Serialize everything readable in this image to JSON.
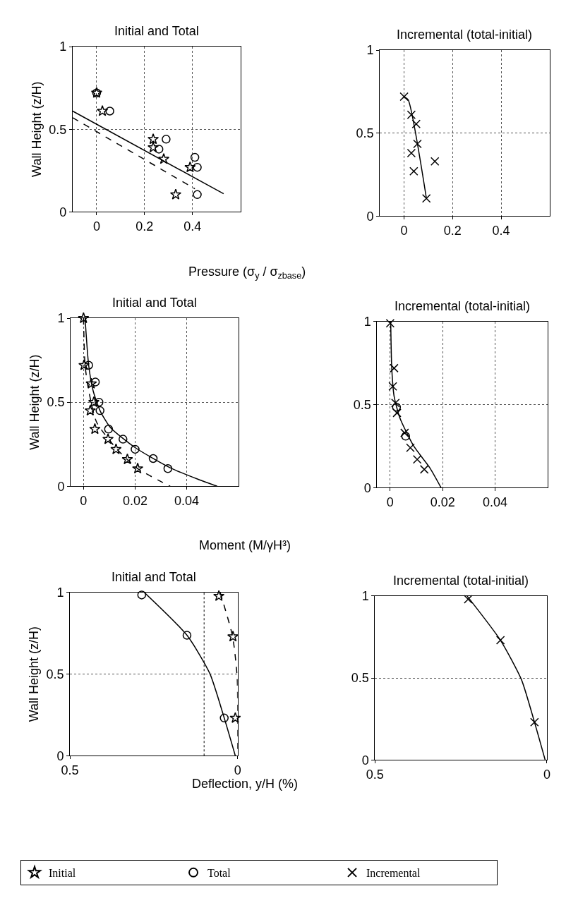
{
  "chart_data": [
    {
      "type": "scatter",
      "title": "Initial and Total",
      "xlabel": "Pressure (σ$_{y}$ / σ$_{z}$$_{base}$)",
      "ylabel": "Wall Height (z/H)",
      "xlim": [
        -0.1,
        0.6
      ],
      "xticks": [
        0,
        0.2,
        0.4
      ],
      "ylim": [
        0,
        1
      ],
      "yticks": [
        0,
        0.5,
        1
      ],
      "grid": true,
      "legend": "bottom",
      "series": [
        {
          "name": "Initial",
          "color": "#000000",
          "marker": "star",
          "x": [
            0.0,
            0.024,
            0.236,
            0.236,
            0.28,
            0.39,
            0.33
          ],
          "values": [
            0.72,
            0.61,
            0.44,
            0.39,
            0.32,
            0.27,
            0.105
          ]
        },
        {
          "name": "Total",
          "color": "#000000",
          "marker": "circle",
          "x": [
            0.0,
            0.055,
            0.29,
            0.26,
            0.41,
            0.42,
            0.42
          ],
          "values": [
            0.72,
            0.61,
            0.44,
            0.38,
            0.33,
            0.27,
            0.105
          ]
        },
        {
          "type": "line",
          "color": "#000000",
          "line_style": "solid",
          "x": [
            -0.1,
            0.53
          ],
          "values": [
            0.61,
            0.11
          ]
        },
        {
          "type": "line",
          "color": "#000000",
          "line_style": "dashed",
          "x": [
            -0.1,
            0.41
          ],
          "values": [
            0.57,
            0.14
          ]
        }
      ]
    },
    {
      "type": "scatter",
      "title": "Incremental (total-initial)",
      "xlim": [
        -0.1,
        0.6
      ],
      "xticks": [
        0,
        0.2,
        0.4
      ],
      "ylim": [
        0,
        1
      ],
      "yticks": [
        0,
        0.5,
        1
      ],
      "grid": true,
      "legend": "bottom",
      "series": [
        {
          "name": "Incremental",
          "color": "#000000",
          "marker": "cross",
          "x": [
            0.0,
            0.03,
            0.05,
            0.055,
            0.03,
            0.04,
            0.127,
            0.092
          ],
          "values": [
            0.72,
            0.61,
            0.555,
            0.435,
            0.38,
            0.27,
            0.33,
            0.107
          ]
        },
        {
          "type": "line",
          "color": "#000000",
          "line_style": "solid",
          "x": [
            0.0,
            0.017,
            0.092
          ],
          "values": [
            0.72,
            0.7,
            0.107
          ]
        }
      ]
    },
    {
      "type": "scatter",
      "title": "Initial and Total",
      "xlabel": "Moment (M/γH³)",
      "ylabel": "Wall Height (z/H)",
      "xlim": [
        -0.005,
        0.06
      ],
      "xticks": [
        0,
        0.02,
        0.04
      ],
      "ylim": [
        0,
        1
      ],
      "yticks": [
        0,
        0.5,
        1
      ],
      "grid": true,
      "legend": "bottom",
      "series": [
        {
          "name": "Initial",
          "color": "#000000",
          "marker": "star",
          "x": [
            0.0,
            0.0002,
            0.003,
            0.004,
            0.0026,
            0.0044,
            0.0095,
            0.0126,
            0.017,
            0.021
          ],
          "values": [
            1.0,
            0.72,
            0.61,
            0.5,
            0.45,
            0.34,
            0.28,
            0.22,
            0.16,
            0.105
          ]
        },
        {
          "name": "Total",
          "color": "#000000",
          "marker": "circle",
          "x": [
            0.002,
            0.0046,
            0.006,
            0.0064,
            0.0097,
            0.0153,
            0.02,
            0.027,
            0.0327
          ],
          "values": [
            0.72,
            0.62,
            0.5,
            0.45,
            0.34,
            0.28,
            0.22,
            0.165,
            0.105
          ]
        },
        {
          "type": "line",
          "color": "#000000",
          "line_style": "solid",
          "x": [
            0.0006,
            0.002,
            0.0037,
            0.0064,
            0.0104,
            0.02,
            0.0336,
            0.0443,
            0.0518
          ],
          "values": [
            1.0,
            0.72,
            0.57,
            0.45,
            0.35,
            0.23,
            0.11,
            0.042,
            0
          ]
        },
        {
          "type": "line",
          "color": "#000000",
          "line_style": "dashed",
          "x": [
            0,
            0.0006,
            0.002,
            0.0051,
            0.013,
            0.021,
            0.0336
          ],
          "values": [
            1.0,
            0.72,
            0.57,
            0.38,
            0.22,
            0.105,
            0
          ]
        }
      ]
    },
    {
      "type": "scatter",
      "title": "Incremental (total-initial)",
      "xlim": [
        -0.005,
        0.06
      ],
      "xticks": [
        0,
        0.02,
        0.04
      ],
      "ylim": [
        0,
        1
      ],
      "yticks": [
        0,
        0.5,
        1
      ],
      "grid": true,
      "legend": "bottom",
      "series": [
        {
          "name": "Incremental",
          "color": "#000000",
          "marker": "cross",
          "x": [
            0.0,
            0.0015,
            0.001,
            0.002,
            0.0026,
            0.0055,
            0.0077,
            0.0103,
            0.013
          ],
          "values": [
            0.99,
            0.72,
            0.61,
            0.51,
            0.45,
            0.33,
            0.24,
            0.17,
            0.11
          ]
        },
        {
          "name": "Total",
          "color": "#000000",
          "marker": "circle",
          "x": [
            0.0024,
            0.0059
          ],
          "values": [
            0.485,
            0.31
          ]
        },
        {
          "type": "line",
          "color": "#000000",
          "line_style": "solid",
          "x": [
            0.0002,
            0.0006,
            0.0015,
            0.0037,
            0.009,
            0.0151,
            0.0194
          ],
          "values": [
            1.0,
            0.72,
            0.55,
            0.42,
            0.25,
            0.12,
            0
          ]
        }
      ]
    },
    {
      "type": "scatter",
      "title": "Initial and Total",
      "xlabel": "Deflection, y/H (%)",
      "ylabel": "Wall Height (z/H)",
      "xlim": [
        0.5,
        0
      ],
      "xticks": [
        0.5,
        0
      ],
      "ylim": [
        0,
        1
      ],
      "yticks": [
        0,
        0.5,
        1
      ],
      "grid": "y",
      "legend": "bottom",
      "ref_lines": [
        {
          "axis": "x",
          "value": 0.1,
          "line_style": "dotted",
          "color": "#000000"
        }
      ],
      "series": [
        {
          "name": "Total",
          "color": "#000000",
          "marker": "circle",
          "x": [
            0.286,
            0.151,
            0.04
          ],
          "values": [
            0.985,
            0.738,
            0.231
          ]
        },
        {
          "name": "Initial",
          "color": "#000000",
          "marker": "star",
          "x": [
            0.056,
            0.014,
            0.007
          ],
          "values": [
            0.978,
            0.73,
            0.231
          ]
        },
        {
          "type": "line",
          "color": "#000000",
          "line_style": "solid",
          "x": [
            0.278,
            0.151,
            0.083,
            0.04,
            0.007
          ],
          "values": [
            1.0,
            0.738,
            0.504,
            0.231,
            0
          ]
        },
        {
          "type": "line",
          "color": "#000000",
          "line_style": "dashed",
          "x": [
            0.052,
            0.015,
            0.0014,
            0
          ],
          "values": [
            1.0,
            0.73,
            0.48,
            0
          ]
        }
      ]
    },
    {
      "type": "scatter",
      "title": "Incremental (total-initial)",
      "xlim": [
        0.5,
        0
      ],
      "xticks": [
        0.5,
        0
      ],
      "ylim": [
        0,
        1
      ],
      "yticks": [
        0,
        0.5,
        1
      ],
      "grid": "y",
      "legend": "bottom",
      "series": [
        {
          "name": "Incremental",
          "color": "#000000",
          "marker": "cross",
          "x": [
            0.229,
            0.135,
            0.036
          ],
          "values": [
            0.98,
            0.73,
            0.23
          ]
        },
        {
          "type": "line",
          "color": "#000000",
          "line_style": "solid",
          "x": [
            0.232,
            0.135,
            0.074,
            0.036,
            0.005
          ],
          "values": [
            1.0,
            0.73,
            0.49,
            0.23,
            0
          ]
        }
      ]
    }
  ]
}
